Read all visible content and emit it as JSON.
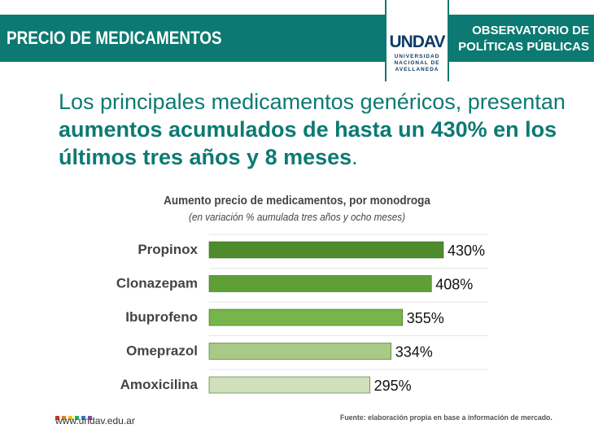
{
  "header": {
    "title": "PRECIO DE MEDICAMENTOS",
    "observatory_line1": "OBSERVATORIO DE",
    "observatory_line2": "POLÍTICAS PÚBLICAS",
    "logo_mark": "UNDAV",
    "logo_line1": "UNIVERSIDAD",
    "logo_line2": "NACIONAL DE",
    "logo_line3": "AVELLANEDA"
  },
  "headline": {
    "part1": "Los principales medicamentos genéricos, presentan ",
    "part2": "aumentos acumulados de hasta un 430% en los últimos tres años y 8 meses",
    "part3": "."
  },
  "chart_data": {
    "type": "bar",
    "orientation": "horizontal",
    "title": "Aumento precio de medicamentos, por monodroga",
    "subtitle": "(en variación % aumulada tres años y ocho meses)",
    "categories": [
      "Propinox",
      "Clonazepam",
      "Ibuprofeno",
      "Omeprazol",
      "Amoxicilina"
    ],
    "values": [
      430,
      408,
      355,
      334,
      295
    ],
    "value_labels": [
      "430%",
      "408%",
      "355%",
      "334%",
      "295%"
    ],
    "colors": [
      "#4d8b2c",
      "#5fa036",
      "#77b44a",
      "#a8ca86",
      "#cfe0bb"
    ],
    "xlim": [
      0,
      430
    ],
    "grid": false,
    "legend": "none"
  },
  "footer": {
    "url": "www.undav.edu.ar",
    "source": "Fuente: elaboración propia en base a información de mercado.",
    "dot_colors": [
      "#c0392b",
      "#e67e22",
      "#f1c40f",
      "#27ae60",
      "#2980b9",
      "#8e44ad"
    ]
  }
}
